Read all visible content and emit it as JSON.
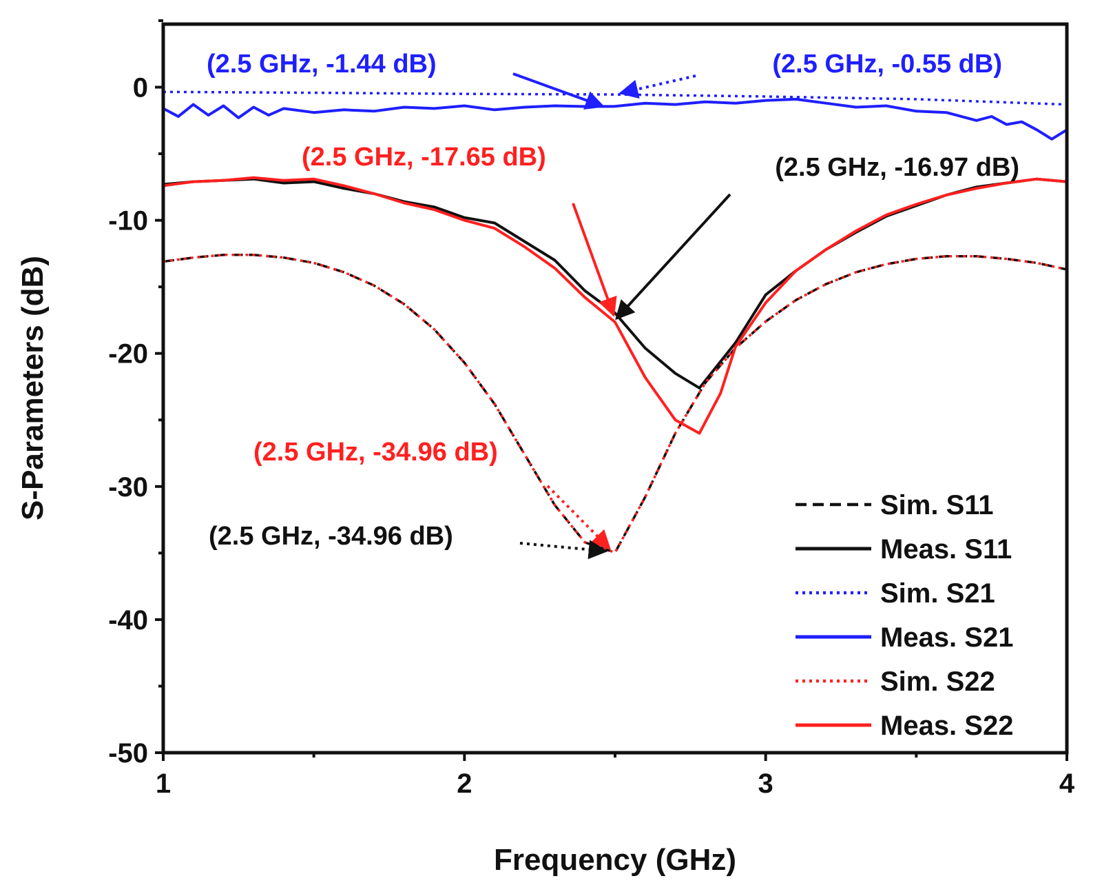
{
  "chart_data": {
    "type": "line",
    "title": "",
    "xlabel": "Frequency (GHz)",
    "ylabel": "S-Parameters (dB)",
    "xlim": [
      1,
      4
    ],
    "ylim": [
      -50,
      5
    ],
    "xticks": [
      "1",
      "2",
      "3",
      "4"
    ],
    "yticks": [
      "0",
      "-10",
      "-20",
      "-30",
      "-40",
      "-50"
    ],
    "colors": {
      "black": "#111111",
      "blue": "#1f1fff",
      "red": "#ff2020"
    },
    "series": [
      {
        "name": "Sim. S11",
        "color": "#111111",
        "style": "dash",
        "x": [
          1.0,
          1.1,
          1.2,
          1.3,
          1.4,
          1.5,
          1.6,
          1.7,
          1.8,
          1.9,
          2.0,
          2.1,
          2.2,
          2.3,
          2.4,
          2.5,
          2.6,
          2.7,
          2.8,
          2.9,
          3.0,
          3.1,
          3.2,
          3.3,
          3.4,
          3.5,
          3.6,
          3.7,
          3.8,
          3.9,
          4.0
        ],
        "y": [
          -13.1,
          -12.8,
          -12.6,
          -12.6,
          -12.8,
          -13.2,
          -13.9,
          -14.9,
          -16.3,
          -18.2,
          -20.7,
          -23.8,
          -27.6,
          -31.4,
          -34.2,
          -34.96,
          -30.8,
          -26.0,
          -22.2,
          -19.6,
          -17.6,
          -16.0,
          -14.8,
          -13.9,
          -13.3,
          -12.9,
          -12.7,
          -12.7,
          -12.9,
          -13.2,
          -13.7
        ]
      },
      {
        "name": "Meas. S11",
        "color": "#111111",
        "style": "solid",
        "x": [
          1.0,
          1.1,
          1.2,
          1.3,
          1.4,
          1.5,
          1.6,
          1.7,
          1.8,
          1.9,
          2.0,
          2.1,
          2.2,
          2.3,
          2.4,
          2.5,
          2.6,
          2.7,
          2.78,
          2.9,
          3.0,
          3.1,
          3.2,
          3.3,
          3.4,
          3.5,
          3.6,
          3.7,
          3.8,
          3.9,
          4.0
        ],
        "y": [
          -7.3,
          -7.1,
          -7.0,
          -6.9,
          -7.2,
          -7.1,
          -7.6,
          -8.0,
          -8.6,
          -9.0,
          -9.8,
          -10.2,
          -11.6,
          -13.0,
          -15.3,
          -16.97,
          -19.6,
          -21.5,
          -22.6,
          -19.2,
          -15.6,
          -13.8,
          -12.2,
          -10.9,
          -9.7,
          -8.9,
          -8.1,
          -7.5,
          -7.2,
          -6.9,
          -7.1
        ]
      },
      {
        "name": "Sim. S21",
        "color": "#1f1fff",
        "style": "dot",
        "x": [
          1.0,
          1.5,
          2.0,
          2.5,
          3.0,
          3.5,
          4.0
        ],
        "y": [
          -0.35,
          -0.42,
          -0.5,
          -0.55,
          -0.7,
          -0.9,
          -1.3
        ]
      },
      {
        "name": "Meas. S21",
        "color": "#1f1fff",
        "style": "solid",
        "x": [
          1.0,
          1.05,
          1.1,
          1.15,
          1.2,
          1.25,
          1.3,
          1.35,
          1.4,
          1.5,
          1.6,
          1.7,
          1.8,
          1.9,
          2.0,
          2.1,
          2.2,
          2.3,
          2.4,
          2.5,
          2.6,
          2.7,
          2.8,
          2.9,
          3.0,
          3.1,
          3.2,
          3.3,
          3.4,
          3.5,
          3.6,
          3.7,
          3.75,
          3.8,
          3.85,
          3.9,
          3.95,
          4.0
        ],
        "y": [
          -1.6,
          -2.2,
          -1.3,
          -2.1,
          -1.4,
          -2.3,
          -1.5,
          -2.1,
          -1.6,
          -1.9,
          -1.7,
          -1.8,
          -1.5,
          -1.6,
          -1.4,
          -1.7,
          -1.5,
          -1.4,
          -1.45,
          -1.44,
          -1.2,
          -1.3,
          -1.1,
          -1.2,
          -1.0,
          -0.9,
          -1.2,
          -1.5,
          -1.4,
          -1.8,
          -1.9,
          -2.5,
          -2.2,
          -2.8,
          -2.6,
          -3.2,
          -3.9,
          -3.2
        ]
      },
      {
        "name": "Sim. S22",
        "color": "#ff2020",
        "style": "dot",
        "x": [
          1.0,
          1.1,
          1.2,
          1.3,
          1.4,
          1.5,
          1.6,
          1.7,
          1.8,
          1.9,
          2.0,
          2.1,
          2.2,
          2.3,
          2.4,
          2.5,
          2.6,
          2.7,
          2.8,
          2.9,
          3.0,
          3.1,
          3.2,
          3.3,
          3.4,
          3.5,
          3.6,
          3.7,
          3.8,
          3.9,
          4.0
        ],
        "y": [
          -13.1,
          -12.8,
          -12.6,
          -12.6,
          -12.8,
          -13.2,
          -13.9,
          -14.9,
          -16.3,
          -18.2,
          -20.7,
          -23.8,
          -27.6,
          -31.4,
          -34.2,
          -34.96,
          -30.8,
          -26.0,
          -22.2,
          -19.6,
          -17.6,
          -16.0,
          -14.8,
          -13.9,
          -13.3,
          -12.9,
          -12.7,
          -12.7,
          -12.9,
          -13.2,
          -13.7
        ]
      },
      {
        "name": "Meas. S22",
        "color": "#ff2020",
        "style": "solid",
        "x": [
          1.0,
          1.1,
          1.2,
          1.3,
          1.4,
          1.5,
          1.6,
          1.7,
          1.8,
          1.9,
          2.0,
          2.1,
          2.2,
          2.3,
          2.4,
          2.5,
          2.6,
          2.7,
          2.78,
          2.85,
          2.9,
          3.0,
          3.1,
          3.2,
          3.3,
          3.4,
          3.5,
          3.6,
          3.7,
          3.8,
          3.9,
          4.0
        ],
        "y": [
          -7.4,
          -7.1,
          -7.0,
          -6.8,
          -7.0,
          -6.9,
          -7.4,
          -8.0,
          -8.7,
          -9.2,
          -10.0,
          -10.6,
          -12.0,
          -13.6,
          -15.8,
          -17.65,
          -21.8,
          -25.0,
          -26.0,
          -23.0,
          -19.5,
          -16.2,
          -13.8,
          -12.2,
          -10.8,
          -9.6,
          -8.8,
          -8.1,
          -7.6,
          -7.2,
          -6.9,
          -7.1
        ]
      }
    ],
    "annotations": [
      {
        "text": "(2.5 GHz, -1.44 dB)",
        "color": "#1f1fff",
        "x": 2.5,
        "y": -1.44,
        "arrow": "solid"
      },
      {
        "text": "(2.5 GHz, -0.55 dB)",
        "color": "#1f1fff",
        "x": 2.5,
        "y": -0.55,
        "arrow": "dot"
      },
      {
        "text": "(2.5 GHz, -17.65 dB)",
        "color": "#ff2020",
        "x": 2.5,
        "y": -17.65,
        "arrow": "solid"
      },
      {
        "text": "(2.5 GHz, -16.97 dB)",
        "color": "#111111",
        "x": 2.5,
        "y": -16.97,
        "arrow": "solid"
      },
      {
        "text": "(2.5 GHz, -34.96 dB)",
        "color": "#ff2020",
        "x": 2.5,
        "y": -34.96,
        "arrow": "dot"
      },
      {
        "text": "(2.5 GHz, -34.96 dB)",
        "color": "#111111",
        "x": 2.5,
        "y": -34.96,
        "arrow": "dot"
      }
    ],
    "legend": {
      "placement": "bottom-right",
      "entries": [
        "Sim. S11",
        "Meas. S11",
        "Sim. S21",
        "Meas. S21",
        "Sim. S22",
        "Meas. S22"
      ]
    }
  }
}
